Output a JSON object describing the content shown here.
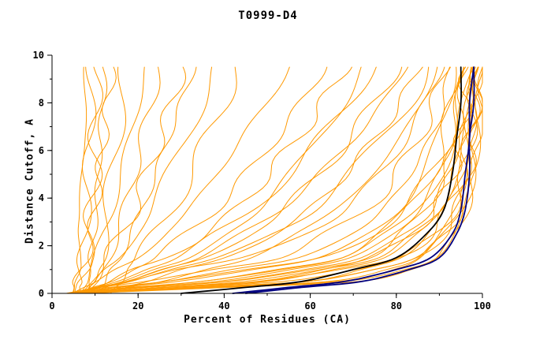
{
  "chart_data": {
    "type": "line",
    "title": "T0999-D4",
    "xlabel": "Percent of Residues (CA)",
    "ylabel": "Distance Cutoff, A",
    "xlim": [
      0,
      100
    ],
    "ylim": [
      0,
      10
    ],
    "x_major_ticks": [
      0,
      20,
      40,
      60,
      80,
      100
    ],
    "x_minor_step": 10,
    "y_major_ticks": [
      0,
      2,
      4,
      6,
      8,
      10
    ],
    "y_minor_step": 1,
    "legend": "none",
    "grid": false,
    "colors": {
      "model_lines": "#FF9900",
      "highlight_navy": "#000080",
      "highlight_black": "#000000",
      "axis": "#000000",
      "background": "#FFFFFF"
    },
    "y_grid": [
      0,
      0.25,
      0.5,
      1,
      1.5,
      2.5,
      3.5,
      5,
      6.5,
      8,
      9.5
    ],
    "orange_series_x": [
      [
        5,
        5,
        5,
        6,
        6,
        6,
        7,
        7,
        7,
        8,
        8
      ],
      [
        6,
        6,
        7,
        7,
        7,
        8,
        8,
        8,
        9,
        9,
        9
      ],
      [
        7,
        7,
        7,
        8,
        8,
        9,
        9,
        10,
        10,
        10,
        11
      ],
      [
        8,
        8,
        8,
        9,
        9,
        10,
        10,
        11,
        11,
        12,
        12
      ],
      [
        5,
        6,
        6,
        7,
        8,
        9,
        10,
        11,
        12,
        13,
        14
      ],
      [
        9,
        9,
        10,
        10,
        11,
        12,
        13,
        14,
        15,
        16,
        17
      ],
      [
        6,
        7,
        8,
        9,
        10,
        12,
        14,
        16,
        18,
        20,
        22
      ],
      [
        10,
        10,
        11,
        12,
        13,
        15,
        17,
        19,
        21,
        23,
        25
      ],
      [
        7,
        8,
        9,
        11,
        13,
        16,
        19,
        22,
        25,
        28,
        30
      ],
      [
        11,
        12,
        13,
        14,
        16,
        18,
        21,
        24,
        27,
        30,
        33
      ],
      [
        8,
        9,
        10,
        12,
        15,
        19,
        23,
        27,
        31,
        35,
        38
      ],
      [
        12,
        13,
        15,
        17,
        20,
        24,
        28,
        32,
        36,
        40,
        43
      ],
      [
        5,
        8,
        11,
        15,
        20,
        26,
        32,
        38,
        44,
        50,
        55
      ],
      [
        6,
        9,
        13,
        18,
        24,
        31,
        38,
        45,
        52,
        58,
        63
      ],
      [
        7,
        10,
        14,
        20,
        27,
        35,
        43,
        50,
        57,
        63,
        68
      ],
      [
        8,
        12,
        17,
        24,
        32,
        40,
        48,
        55,
        62,
        68,
        72
      ],
      [
        5,
        9,
        14,
        21,
        29,
        38,
        47,
        55,
        62,
        69,
        75
      ],
      [
        9,
        13,
        19,
        27,
        36,
        45,
        54,
        62,
        69,
        75,
        80
      ],
      [
        6,
        11,
        17,
        25,
        34,
        44,
        53,
        62,
        70,
        77,
        82
      ],
      [
        10,
        15,
        22,
        31,
        41,
        51,
        60,
        68,
        75,
        81,
        85
      ],
      [
        7,
        13,
        20,
        29,
        39,
        50,
        60,
        69,
        77,
        83,
        87
      ],
      [
        11,
        17,
        25,
        35,
        46,
        57,
        66,
        74,
        81,
        86,
        89
      ],
      [
        4,
        10,
        18,
        30,
        45,
        58,
        68,
        76,
        82,
        87,
        90
      ],
      [
        5,
        12,
        22,
        36,
        52,
        64,
        73,
        80,
        85,
        89,
        91
      ],
      [
        4,
        14,
        26,
        42,
        58,
        69,
        77,
        83,
        88,
        91,
        92
      ],
      [
        6,
        16,
        30,
        48,
        63,
        73,
        80,
        86,
        90,
        92,
        93
      ],
      [
        5,
        18,
        34,
        52,
        66,
        76,
        83,
        88,
        91,
        93,
        94
      ],
      [
        4,
        20,
        38,
        56,
        70,
        79,
        85,
        90,
        93,
        94,
        95
      ],
      [
        6,
        22,
        42,
        60,
        73,
        81,
        87,
        91,
        94,
        95,
        96
      ],
      [
        5,
        24,
        46,
        63,
        75,
        83,
        89,
        93,
        95,
        96,
        96
      ],
      [
        4,
        26,
        50,
        66,
        78,
        85,
        90,
        94,
        96,
        97,
        97
      ],
      [
        6,
        28,
        54,
        70,
        80,
        87,
        92,
        95,
        96,
        97,
        98
      ],
      [
        5,
        30,
        58,
        72,
        82,
        89,
        93,
        96,
        97,
        98,
        98
      ],
      [
        4,
        32,
        60,
        75,
        84,
        90,
        94,
        96,
        98,
        98,
        99
      ],
      [
        6,
        34,
        63,
        77,
        86,
        91,
        95,
        97,
        98,
        99,
        99
      ],
      [
        5,
        36,
        66,
        80,
        87,
        92,
        95,
        97,
        98,
        99,
        100
      ],
      [
        4,
        38,
        68,
        82,
        89,
        93,
        96,
        98,
        99,
        99,
        100
      ],
      [
        6,
        40,
        70,
        83,
        90,
        94,
        96,
        98,
        99,
        100,
        100
      ],
      [
        5,
        28,
        50,
        68,
        80,
        88,
        92,
        95,
        97,
        98,
        99
      ],
      [
        4,
        22,
        40,
        58,
        72,
        82,
        88,
        92,
        95,
        97,
        98
      ],
      [
        6,
        18,
        34,
        52,
        68,
        78,
        85,
        90,
        94,
        96,
        97
      ],
      [
        5,
        15,
        28,
        46,
        62,
        74,
        82,
        88,
        92,
        95,
        96
      ],
      [
        7,
        25,
        44,
        62,
        76,
        84,
        90,
        93,
        96,
        97,
        98
      ],
      [
        8,
        35,
        60,
        76,
        85,
        91,
        94,
        96,
        98,
        99,
        99
      ]
    ],
    "highlight_series": [
      {
        "name": "model-black",
        "color": "#000000",
        "x": [
          30,
          45,
          58,
          70,
          80,
          87,
          91,
          93,
          94,
          95,
          95
        ]
      },
      {
        "name": "model-navy-1",
        "color": "#000080",
        "x": [
          42,
          55,
          68,
          80,
          88,
          93,
          95,
          96,
          97,
          97,
          98
        ]
      },
      {
        "name": "model-navy-2",
        "color": "#000080",
        "x": [
          45,
          58,
          72,
          83,
          90,
          94,
          96,
          97,
          97,
          98,
          98
        ]
      }
    ]
  }
}
